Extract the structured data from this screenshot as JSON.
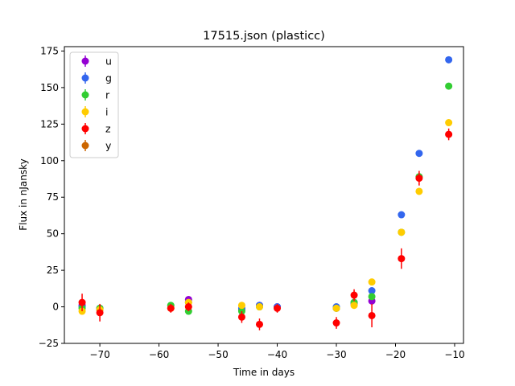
{
  "chart_data": {
    "type": "scatter",
    "title": "17515.json (plasticc)",
    "xlabel": "Time in days",
    "ylabel": "Flux in nJansky",
    "xlim": [
      -76,
      -8.5
    ],
    "ylim": [
      -25,
      178
    ],
    "xticks": [
      -70,
      -60,
      -50,
      -40,
      -30,
      -20,
      -10
    ],
    "yticks": [
      -25,
      0,
      25,
      50,
      75,
      100,
      125,
      150,
      175
    ],
    "grid": false,
    "legend_position": "top-left",
    "series": [
      {
        "name": "u",
        "color": "#9400d3",
        "points": [
          {
            "x": -73,
            "y": 1,
            "err": 1.5
          },
          {
            "x": -70,
            "y": -1,
            "err": 1.5
          },
          {
            "x": -55,
            "y": 5,
            "err": 1.5
          },
          {
            "x": -46,
            "y": -2,
            "err": 1.5
          },
          {
            "x": -43,
            "y": 1,
            "err": 1.5
          },
          {
            "x": -40,
            "y": 0,
            "err": 1.5
          },
          {
            "x": -30,
            "y": -1,
            "err": 1.5
          },
          {
            "x": -27,
            "y": 2,
            "err": 1.5
          },
          {
            "x": -24,
            "y": 4,
            "err": 1.5
          }
        ]
      },
      {
        "name": "g",
        "color": "#3366ee",
        "points": [
          {
            "x": -73,
            "y": 0,
            "err": 1.5
          },
          {
            "x": -70,
            "y": -2,
            "err": 1.5
          },
          {
            "x": -55,
            "y": 3,
            "err": 1.5
          },
          {
            "x": -46,
            "y": -1,
            "err": 1.5
          },
          {
            "x": -43,
            "y": 1,
            "err": 1.5
          },
          {
            "x": -40,
            "y": 0,
            "err": 1.5
          },
          {
            "x": -30,
            "y": 0,
            "err": 1.5
          },
          {
            "x": -27,
            "y": 3,
            "err": 1.5
          },
          {
            "x": -24,
            "y": 11,
            "err": 1.5
          },
          {
            "x": -19,
            "y": 63,
            "err": 1.5
          },
          {
            "x": -16,
            "y": 105,
            "err": 1.5
          },
          {
            "x": -11,
            "y": 169,
            "err": 1.5
          }
        ]
      },
      {
        "name": "r",
        "color": "#32cd32",
        "points": [
          {
            "x": -73,
            "y": -1,
            "err": 1.5
          },
          {
            "x": -70,
            "y": -1,
            "err": 1.5
          },
          {
            "x": -58,
            "y": 1,
            "err": 1.5
          },
          {
            "x": -55,
            "y": -3,
            "err": 1.5
          },
          {
            "x": -46,
            "y": -3,
            "err": 1.5
          },
          {
            "x": -43,
            "y": 0,
            "err": 1.5
          },
          {
            "x": -30,
            "y": -1,
            "err": 1.5
          },
          {
            "x": -27,
            "y": 3,
            "err": 1.5
          },
          {
            "x": -24,
            "y": 7,
            "err": 1.5
          },
          {
            "x": -19,
            "y": 51,
            "err": 1.5
          },
          {
            "x": -16,
            "y": 89,
            "err": 2
          },
          {
            "x": -11,
            "y": 151,
            "err": 1.5
          }
        ]
      },
      {
        "name": "i",
        "color": "#ffcc00",
        "points": [
          {
            "x": -73,
            "y": -3,
            "err": 1.5
          },
          {
            "x": -70,
            "y": -2,
            "err": 1.5
          },
          {
            "x": -58,
            "y": -1,
            "err": 1.5
          },
          {
            "x": -55,
            "y": 3,
            "err": 1.5
          },
          {
            "x": -46,
            "y": 1,
            "err": 1.5
          },
          {
            "x": -43,
            "y": 0,
            "err": 1.5
          },
          {
            "x": -30,
            "y": -1,
            "err": 1.5
          },
          {
            "x": -27,
            "y": 1,
            "err": 1.5
          },
          {
            "x": -24,
            "y": 17,
            "err": 2
          },
          {
            "x": -19,
            "y": 51,
            "err": 2
          },
          {
            "x": -16,
            "y": 79,
            "err": 1.5
          },
          {
            "x": -11,
            "y": 126,
            "err": 1.5
          }
        ]
      },
      {
        "name": "z",
        "color": "#ff0000",
        "points": [
          {
            "x": -73,
            "y": 3,
            "err": 6
          },
          {
            "x": -70,
            "y": -4,
            "err": 6
          },
          {
            "x": -58,
            "y": -1,
            "err": 3
          },
          {
            "x": -55,
            "y": 0,
            "err": 3
          },
          {
            "x": -46,
            "y": -7,
            "err": 4
          },
          {
            "x": -43,
            "y": -12,
            "err": 4
          },
          {
            "x": -40,
            "y": -1,
            "err": 3
          },
          {
            "x": -30,
            "y": -11,
            "err": 4
          },
          {
            "x": -27,
            "y": 8,
            "err": 4
          },
          {
            "x": -24,
            "y": -6,
            "err": 8
          },
          {
            "x": -19,
            "y": 33,
            "err": 7
          },
          {
            "x": -16,
            "y": 88,
            "err": 5
          },
          {
            "x": -11,
            "y": 118,
            "err": 4
          }
        ]
      },
      {
        "name": "y",
        "color": "#cc6600",
        "points": []
      }
    ]
  }
}
